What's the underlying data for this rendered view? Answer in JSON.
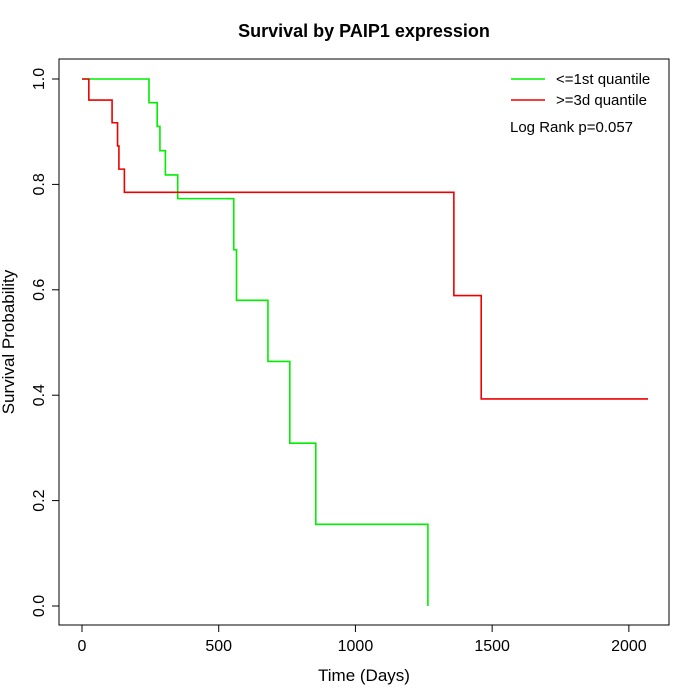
{
  "chart_data": {
    "type": "line",
    "title": "Survival by PAIP1 expression",
    "xlabel": "Time (Days)",
    "ylabel": "Survival Probability",
    "xlim": [
      0,
      2070
    ],
    "ylim": [
      0,
      1
    ],
    "xticks": [
      0,
      500,
      1000,
      1500,
      2000
    ],
    "yticks": [
      0.0,
      0.2,
      0.4,
      0.6,
      0.8,
      1.0
    ],
    "xtick_labels": [
      "0",
      "500",
      "1000",
      "1500",
      "2000"
    ],
    "ytick_labels": [
      "0.0",
      "0.2",
      "0.4",
      "0.6",
      "0.8",
      "1.0"
    ],
    "grid": false,
    "legend_position": "top-right",
    "annotation": "Log Rank p=0.057",
    "series": [
      {
        "name": "<=1st quantile",
        "color": "#00ee00",
        "steps": [
          [
            0,
            1.0
          ],
          [
            245,
            0.955
          ],
          [
            275,
            0.91
          ],
          [
            285,
            0.864
          ],
          [
            305,
            0.818
          ],
          [
            350,
            0.773
          ],
          [
            555,
            0.676
          ],
          [
            565,
            0.58
          ],
          [
            680,
            0.464
          ],
          [
            760,
            0.309
          ],
          [
            855,
            0.155
          ],
          [
            1265,
            0.0
          ]
        ],
        "end_x": 1265
      },
      {
        "name": ">=3d quantile",
        "color": "#ee0000",
        "steps": [
          [
            0,
            1.0
          ],
          [
            25,
            0.96
          ],
          [
            110,
            0.917
          ],
          [
            130,
            0.873
          ],
          [
            135,
            0.829
          ],
          [
            155,
            0.785
          ],
          [
            1360,
            0.589
          ],
          [
            1460,
            0.393
          ]
        ],
        "end_x": 2070
      }
    ]
  }
}
